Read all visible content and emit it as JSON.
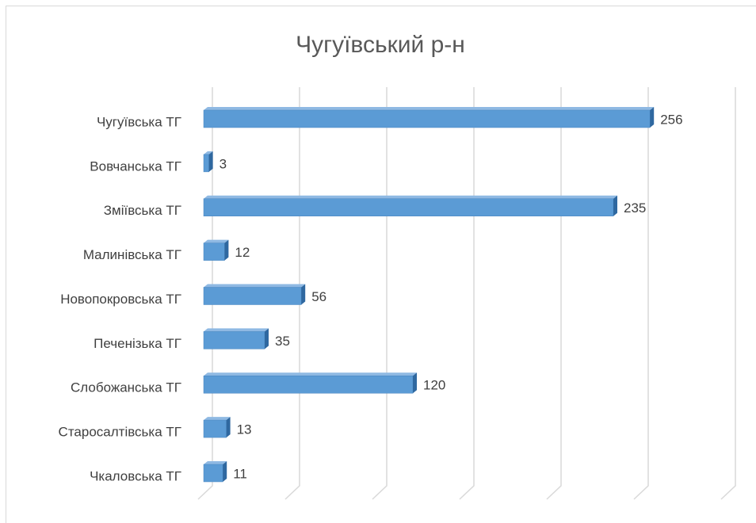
{
  "chart_data": {
    "type": "bar3d_horizontal",
    "title": "Чугуївський р-н",
    "categories": [
      "Чугуївська ТГ",
      "Вовчанська ТГ",
      "Зміївська ТГ",
      "Малинівська ТГ",
      "Новопокровська ТГ",
      "Печенізька ТГ",
      "Слобожанська ТГ",
      "Старосалтівська ТГ",
      "Чкаловська ТГ"
    ],
    "values": [
      256,
      3,
      235,
      12,
      56,
      35,
      120,
      13,
      11
    ],
    "color": "#5b9bd5",
    "xlim": [
      0,
      300
    ],
    "xticks": [
      0,
      50,
      100,
      150,
      200,
      250,
      300
    ],
    "grid": true
  }
}
